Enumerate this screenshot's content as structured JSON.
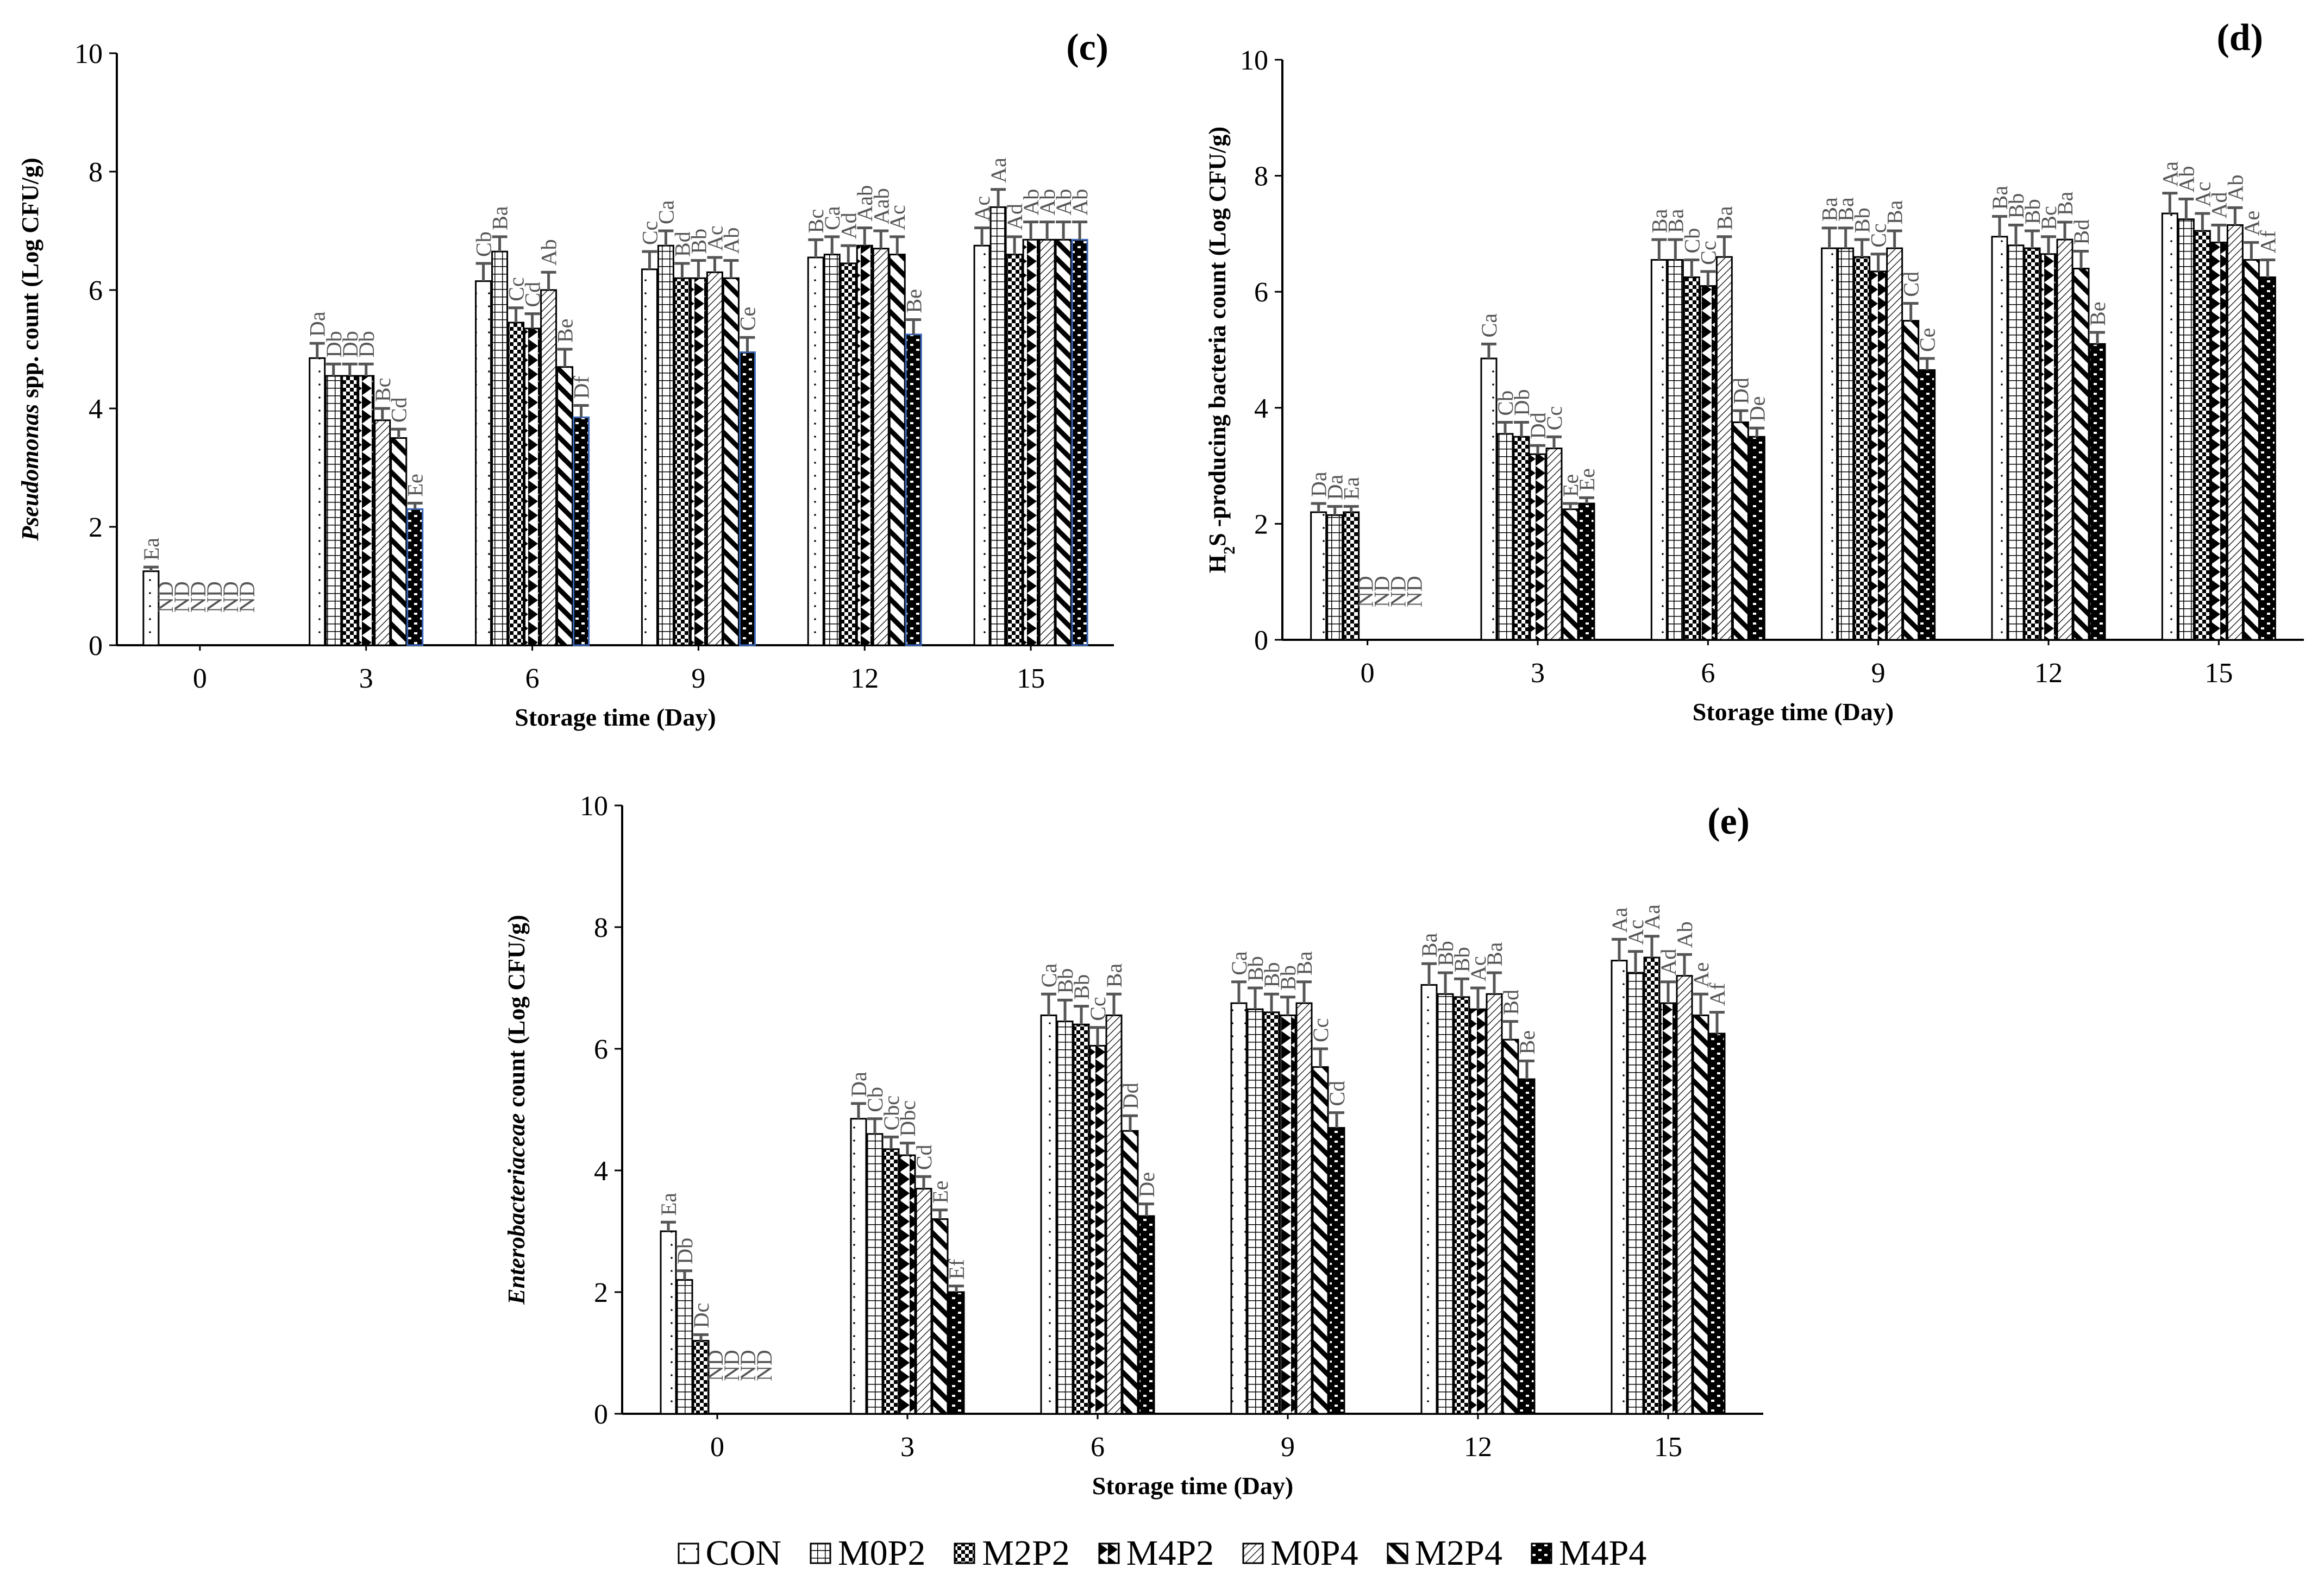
{
  "legend": [
    "CON",
    "M0P2",
    "M2P2",
    "M4P2",
    "M0P4",
    "M2P4",
    "M4P4"
  ],
  "legend_icons": [
    "blank-pattern-icon",
    "grid-pattern-icon",
    "checker-pattern-icon",
    "triangle-pattern-icon",
    "hatch-pattern-icon",
    "diagonal-pattern-icon",
    "brick-pattern-icon"
  ],
  "colors": {
    "bars_edge": "#000000",
    "error_bar": "#555555",
    "letters": "#555555",
    "highlight_edge": "#3a66b8"
  },
  "chart_data": [
    {
      "type": "bar",
      "panel_label": "(c)",
      "ylabel": "spp. count (Log CFU/g)",
      "ylabel_italic": "Pseudomonas",
      "xlabel": "Storage time (Day)",
      "ylim": [
        0,
        10
      ],
      "yticks": [
        0,
        2,
        4,
        6,
        8,
        10
      ],
      "categories": [
        "0",
        "3",
        "6",
        "9",
        "12",
        "15"
      ],
      "series": [
        {
          "name": "CON",
          "values": [
            1.25,
            4.85,
            6.15,
            6.35,
            6.55,
            6.75
          ],
          "errors": [
            0.07,
            0.25,
            0.3,
            0.3,
            0.3,
            0.3
          ],
          "letters": [
            "Ea",
            "Da",
            "Cb",
            "Cc",
            "Bc",
            "Ac"
          ]
        },
        {
          "name": "M0P2",
          "values": [
            null,
            4.55,
            6.65,
            6.75,
            6.6,
            7.4
          ],
          "errors": [
            null,
            0.2,
            0.25,
            0.25,
            0.3,
            0.3
          ],
          "letters": [
            "ND",
            "Db",
            "Ba",
            "Ca",
            "Ca",
            "Aa"
          ]
        },
        {
          "name": "M2P2",
          "values": [
            null,
            4.55,
            5.45,
            6.2,
            6.45,
            6.6
          ],
          "errors": [
            null,
            0.2,
            0.25,
            0.25,
            0.3,
            0.3
          ],
          "letters": [
            "ND",
            "Db",
            "Cc",
            "Bd",
            "Ad",
            "Ad"
          ]
        },
        {
          "name": "M4P2",
          "values": [
            null,
            4.55,
            5.35,
            6.2,
            6.75,
            6.85
          ],
          "errors": [
            null,
            0.2,
            0.25,
            0.3,
            0.3,
            0.3
          ],
          "letters": [
            "ND",
            "Db",
            "Cd",
            "Bb",
            "Aab",
            "Ab"
          ]
        },
        {
          "name": "M0P4",
          "values": [
            null,
            3.8,
            6.0,
            6.3,
            6.7,
            6.85
          ],
          "errors": [
            null,
            0.2,
            0.3,
            0.25,
            0.3,
            0.3
          ],
          "letters": [
            "ND",
            "Bc",
            "Ab",
            "Ac",
            "Aab",
            "Ab"
          ]
        },
        {
          "name": "M2P4",
          "values": [
            null,
            3.5,
            4.7,
            6.2,
            6.6,
            6.85
          ],
          "errors": [
            null,
            0.15,
            0.3,
            0.3,
            0.3,
            0.3
          ],
          "letters": [
            "ND",
            "Cd",
            "Be",
            "Ab",
            "Ac",
            "Ab"
          ]
        },
        {
          "name": "M4P4",
          "values": [
            null,
            2.3,
            3.85,
            4.95,
            5.25,
            6.85
          ],
          "errors": [
            null,
            0.1,
            0.2,
            0.25,
            0.25,
            0.3
          ],
          "letters": [
            "ND",
            "Ee",
            "Df",
            "Ce",
            "Be",
            "Ab"
          ]
        }
      ]
    },
    {
      "type": "bar",
      "panel_label": "(d)",
      "ylabel": "-producing bacteria count (Log CFU/g)",
      "ylabel_prefix": "H",
      "ylabel_sub": "2",
      "ylabel_after_sub": "S",
      "xlabel": "Storage time (Day)",
      "ylim": [
        0,
        10
      ],
      "yticks": [
        0,
        2,
        4,
        6,
        8,
        10
      ],
      "categories": [
        "0",
        "3",
        "6",
        "9",
        "12",
        "15"
      ],
      "series": [
        {
          "name": "CON",
          "values": [
            2.2,
            4.85,
            6.55,
            6.75,
            6.95,
            7.35
          ],
          "errors": [
            0.15,
            0.25,
            0.35,
            0.35,
            0.35,
            0.35
          ],
          "letters": [
            "Da",
            "Ca",
            "Ba",
            "Ba",
            "Ba",
            "Aa"
          ]
        },
        {
          "name": "M0P2",
          "values": [
            2.15,
            3.55,
            6.55,
            6.75,
            6.8,
            7.25
          ],
          "errors": [
            0.15,
            0.2,
            0.35,
            0.35,
            0.35,
            0.35
          ],
          "letters": [
            "Da",
            "Cb",
            "Ba",
            "Ba",
            "Bb",
            "Ab"
          ]
        },
        {
          "name": "M2P2",
          "values": [
            2.2,
            3.5,
            6.25,
            6.6,
            6.75,
            7.05
          ],
          "errors": [
            0.1,
            0.25,
            0.3,
            0.3,
            0.3,
            0.3
          ],
          "letters": [
            "Ea",
            "Db",
            "Cb",
            "Bb",
            "Bb",
            "Ac"
          ]
        },
        {
          "name": "M4P2",
          "values": [
            null,
            3.2,
            6.1,
            6.35,
            6.65,
            6.85
          ],
          "errors": [
            null,
            0.15,
            0.25,
            0.3,
            0.3,
            0.3
          ],
          "letters": [
            "ND",
            "Dd",
            "Cc",
            "Cc",
            "Bc",
            "Ad"
          ]
        },
        {
          "name": "M0P4",
          "values": [
            null,
            3.3,
            6.6,
            6.75,
            6.9,
            7.15
          ],
          "errors": [
            null,
            0.2,
            0.35,
            0.3,
            0.3,
            0.3
          ],
          "letters": [
            "ND",
            "Cc",
            "Ba",
            "Ba",
            "Ba",
            "Ab"
          ]
        },
        {
          "name": "M2P4",
          "values": [
            null,
            2.25,
            3.75,
            5.5,
            6.4,
            6.55
          ],
          "errors": [
            null,
            0.1,
            0.2,
            0.3,
            0.3,
            0.3
          ],
          "letters": [
            "ND",
            "Ee",
            "Dd",
            "Cd",
            "Bd",
            "Ae"
          ]
        },
        {
          "name": "M4P4",
          "values": [
            null,
            2.35,
            3.5,
            4.65,
            5.1,
            6.25
          ],
          "errors": [
            null,
            0.1,
            0.15,
            0.2,
            0.2,
            0.3
          ],
          "letters": [
            "ND",
            "Ee",
            "De",
            "Ce",
            "Be",
            "Af"
          ]
        }
      ]
    },
    {
      "type": "bar",
      "panel_label": "(e)",
      "ylabel": "count (Log CFU/g)",
      "ylabel_italic": "Enterobacteriaceae",
      "xlabel": "Storage time (Day)",
      "ylim": [
        0,
        10
      ],
      "yticks": [
        0,
        2,
        4,
        6,
        8,
        10
      ],
      "categories": [
        "0",
        "3",
        "6",
        "9",
        "12",
        "15"
      ],
      "series": [
        {
          "name": "CON",
          "values": [
            3.0,
            4.85,
            6.55,
            6.75,
            7.05,
            7.45
          ],
          "errors": [
            0.15,
            0.25,
            0.35,
            0.35,
            0.35,
            0.35
          ],
          "letters": [
            "Ea",
            "Da",
            "Ca",
            "Ca",
            "Ba",
            "Aa"
          ]
        },
        {
          "name": "M0P2",
          "values": [
            2.2,
            4.6,
            6.45,
            6.65,
            6.9,
            7.25
          ],
          "errors": [
            0.15,
            0.25,
            0.35,
            0.35,
            0.35,
            0.35
          ],
          "letters": [
            "Db",
            "Cb",
            "Bb",
            "Bb",
            "Bb",
            "Ac"
          ]
        },
        {
          "name": "M2P2",
          "values": [
            1.2,
            4.35,
            6.4,
            6.6,
            6.85,
            7.5
          ],
          "errors": [
            0.1,
            0.2,
            0.3,
            0.3,
            0.3,
            0.35
          ],
          "letters": [
            "Dc",
            "Cbc",
            "Bb",
            "Bb",
            "Bb",
            "Aa"
          ]
        },
        {
          "name": "M4P2",
          "values": [
            null,
            4.25,
            6.05,
            6.55,
            6.65,
            6.75
          ],
          "errors": [
            null,
            0.2,
            0.3,
            0.3,
            0.35,
            0.35
          ],
          "letters": [
            "ND",
            "Dbc",
            "Cc",
            "Bb",
            "Ac",
            "Ad"
          ]
        },
        {
          "name": "M0P4",
          "values": [
            null,
            3.7,
            6.55,
            6.75,
            6.9,
            7.2
          ],
          "errors": [
            null,
            0.2,
            0.35,
            0.35,
            0.35,
            0.35
          ],
          "letters": [
            "ND",
            "Cd",
            "Ba",
            "Ba",
            "Ba",
            "Ab"
          ]
        },
        {
          "name": "M2P4",
          "values": [
            null,
            3.2,
            4.65,
            5.7,
            6.15,
            6.55
          ],
          "errors": [
            null,
            0.15,
            0.25,
            0.3,
            0.3,
            0.35
          ],
          "letters": [
            "ND",
            "Ee",
            "Dd",
            "Cc",
            "Bd",
            "Ae"
          ]
        },
        {
          "name": "M4P4",
          "values": [
            null,
            2.0,
            3.25,
            4.7,
            5.5,
            6.25
          ],
          "errors": [
            null,
            0.1,
            0.2,
            0.25,
            0.3,
            0.35
          ],
          "letters": [
            "ND",
            "Ef",
            "De",
            "Cd",
            "Be",
            "Af"
          ]
        }
      ]
    }
  ]
}
